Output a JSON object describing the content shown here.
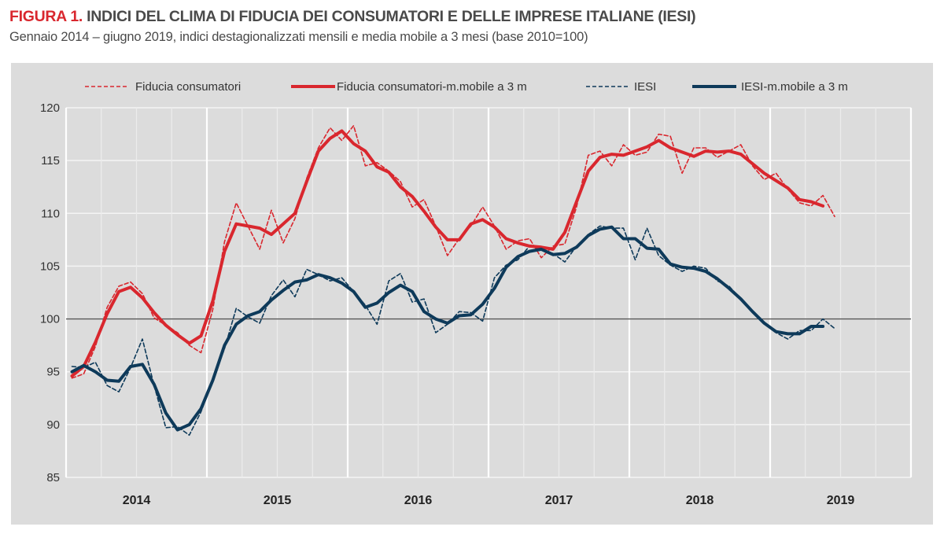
{
  "header": {
    "figure_label": "FIGURA 1.",
    "title": "INDICI DEL CLIMA DI FIDUCIA DEI CONSUMATORI E DELLE IMPRESE ITALIANE (IESI)",
    "subtitle": "Gennaio 2014 – giugno 2019, indici destagionalizzati mensili e media mobile a 3 mesi (base 2010=100)"
  },
  "chart_data": {
    "type": "line",
    "x_start": "2014-01",
    "x_frequency": "monthly",
    "x_ticks": [
      "2014",
      "2015",
      "2016",
      "2017",
      "2018",
      "2019"
    ],
    "y_ticks": [
      85,
      90,
      95,
      100,
      105,
      110,
      115,
      120
    ],
    "ylim": [
      85,
      120
    ],
    "reference_line": 100,
    "grid": true,
    "legend_position": "top",
    "series": [
      {
        "name": "Fiducia consumatori",
        "color": "#d9272e",
        "style": "dashed",
        "values": [
          94.4,
          94.8,
          97.4,
          101.1,
          103.1,
          103.5,
          102.4,
          100.1,
          99.4,
          98.7,
          97.5,
          96.8,
          100.9,
          107.3,
          111.0,
          108.8,
          106.6,
          110.3,
          107.2,
          109.5,
          113.3,
          116.2,
          118.1,
          116.9,
          118.3,
          114.5,
          114.8,
          114.0,
          113.0,
          110.6,
          111.3,
          108.8,
          106.0,
          107.6,
          108.8,
          110.6,
          108.8,
          106.6,
          107.4,
          107.6,
          105.8,
          106.9,
          107.1,
          110.6,
          115.5,
          115.9,
          114.5,
          116.5,
          115.5,
          115.8,
          117.5,
          117.3,
          113.8,
          116.2,
          116.2,
          115.3,
          115.9,
          116.5,
          114.5,
          113.2,
          113.8,
          112.3,
          111.0,
          110.7,
          111.7,
          109.7
        ]
      },
      {
        "name": "Fiducia consumatori-m.mobile a 3 m",
        "color": "#d9272e",
        "style": "solid",
        "values": [
          94.6,
          95.5,
          97.8,
          100.5,
          102.6,
          103.0,
          102.0,
          100.6,
          99.4,
          98.5,
          97.7,
          98.4,
          101.7,
          106.4,
          109.0,
          108.8,
          108.6,
          108.0,
          109.0,
          110.0,
          113.0,
          115.9,
          117.1,
          117.8,
          116.6,
          115.9,
          114.4,
          113.9,
          112.5,
          111.6,
          110.2,
          108.7,
          107.5,
          107.5,
          109.0,
          109.4,
          108.7,
          107.6,
          107.2,
          106.9,
          106.8,
          106.6,
          108.2,
          111.1,
          114.0,
          115.3,
          115.6,
          115.5,
          115.9,
          116.3,
          116.9,
          116.2,
          115.8,
          115.4,
          115.9,
          115.8,
          115.9,
          115.6,
          114.7,
          113.8,
          113.1,
          112.4,
          111.3,
          111.1,
          110.7
        ]
      },
      {
        "name": "IESI",
        "color": "#0e3a5a",
        "style": "dashed",
        "values": [
          95.5,
          95.4,
          95.9,
          93.7,
          93.1,
          95.4,
          98.1,
          93.7,
          89.7,
          89.8,
          89.0,
          91.2,
          94.2,
          97.2,
          101.0,
          100.2,
          99.6,
          102.2,
          103.7,
          102.1,
          104.7,
          104.2,
          103.6,
          103.9,
          102.6,
          101.3,
          99.5,
          103.6,
          104.3,
          101.6,
          101.9,
          98.7,
          99.5,
          100.7,
          100.6,
          99.8,
          103.9,
          105.1,
          105.6,
          106.9,
          106.6,
          106.2,
          105.4,
          106.9,
          108.0,
          108.8,
          108.6,
          108.6,
          105.6,
          108.6,
          106.0,
          105.1,
          104.5,
          105.0,
          104.8,
          103.6,
          103.1,
          101.9,
          100.6,
          99.6,
          98.7,
          98.1,
          98.9,
          98.9,
          100.0,
          99.1
        ]
      },
      {
        "name": "IESI-m.mobile a 3 m",
        "color": "#0e3a5a",
        "style": "solid",
        "values": [
          95.0,
          95.6,
          95.0,
          94.2,
          94.1,
          95.5,
          95.7,
          93.8,
          91.1,
          89.5,
          90.0,
          91.5,
          94.2,
          97.5,
          99.5,
          100.3,
          100.7,
          101.8,
          102.7,
          103.5,
          103.7,
          104.2,
          103.9,
          103.4,
          102.6,
          101.1,
          101.5,
          102.5,
          103.2,
          102.6,
          100.7,
          100.0,
          99.6,
          100.3,
          100.4,
          101.4,
          102.9,
          104.9,
          105.9,
          106.4,
          106.6,
          106.1,
          106.2,
          106.8,
          107.9,
          108.5,
          108.7,
          107.6,
          107.6,
          106.7,
          106.6,
          105.2,
          104.9,
          104.8,
          104.5,
          103.8,
          102.9,
          101.9,
          100.7,
          99.6,
          98.8,
          98.6,
          98.6,
          99.3,
          99.3
        ]
      }
    ]
  }
}
